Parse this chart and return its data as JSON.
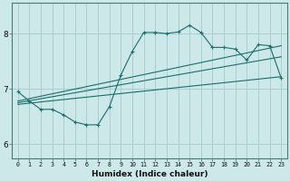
{
  "xlabel": "Humidex (Indice chaleur)",
  "bg_color": "#cce8e8",
  "grid_color": "#aacfcf",
  "line_color": "#1a6e6e",
  "xlim": [
    -0.5,
    23.5
  ],
  "ylim": [
    5.75,
    8.55
  ],
  "xticks": [
    0,
    1,
    2,
    3,
    4,
    5,
    6,
    7,
    8,
    9,
    10,
    11,
    12,
    13,
    14,
    15,
    16,
    17,
    18,
    19,
    20,
    21,
    22,
    23
  ],
  "yticks": [
    6,
    7,
    8
  ],
  "series1_x": [
    0,
    1,
    2,
    3,
    4,
    5,
    6,
    7,
    8,
    9,
    10,
    11,
    12,
    13,
    14,
    15,
    16,
    17,
    18,
    19,
    20,
    21,
    22,
    23
  ],
  "series1_y": [
    6.95,
    6.78,
    6.63,
    6.63,
    6.53,
    6.4,
    6.35,
    6.35,
    6.68,
    7.25,
    7.68,
    8.02,
    8.02,
    8.0,
    8.03,
    8.15,
    8.02,
    7.75,
    7.75,
    7.72,
    7.52,
    7.8,
    7.78,
    7.2
  ],
  "trend1_x": [
    0,
    23
  ],
  "trend1_y": [
    6.78,
    7.78
  ],
  "trend2_x": [
    0,
    23
  ],
  "trend2_y": [
    6.72,
    7.22
  ],
  "trend3_x": [
    0,
    23
  ],
  "trend3_y": [
    6.75,
    7.58
  ],
  "marker": "+"
}
